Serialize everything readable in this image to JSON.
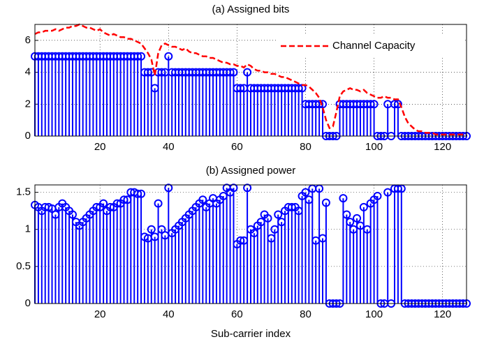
{
  "chart_data": [
    {
      "type": "stem",
      "title": "(a) Assigned bits",
      "color": "#0000ff",
      "x": [
        1,
        2,
        3,
        4,
        5,
        6,
        7,
        8,
        9,
        10,
        11,
        12,
        13,
        14,
        15,
        16,
        17,
        18,
        19,
        20,
        21,
        22,
        23,
        24,
        25,
        26,
        27,
        28,
        29,
        30,
        31,
        32,
        33,
        34,
        35,
        36,
        37,
        38,
        39,
        40,
        41,
        42,
        43,
        44,
        45,
        46,
        47,
        48,
        49,
        50,
        51,
        52,
        53,
        54,
        55,
        56,
        57,
        58,
        59,
        60,
        61,
        62,
        63,
        64,
        65,
        66,
        67,
        68,
        69,
        70,
        71,
        72,
        73,
        74,
        75,
        76,
        77,
        78,
        79,
        80,
        81,
        82,
        83,
        84,
        85,
        86,
        87,
        88,
        89,
        90,
        91,
        92,
        93,
        94,
        95,
        96,
        97,
        98,
        99,
        100,
        101,
        102,
        103,
        104,
        105,
        106,
        107,
        108,
        109,
        110,
        111,
        112,
        113,
        114,
        115,
        116,
        117,
        118,
        119,
        120,
        121,
        122,
        123,
        124,
        125,
        126,
        127
      ],
      "values": [
        5,
        5,
        5,
        5,
        5,
        5,
        5,
        5,
        5,
        5,
        5,
        5,
        5,
        5,
        5,
        5,
        5,
        5,
        5,
        5,
        5,
        5,
        5,
        5,
        5,
        5,
        5,
        5,
        5,
        5,
        5,
        5,
        4,
        4,
        4,
        3,
        4,
        4,
        4,
        5,
        4,
        4,
        4,
        4,
        4,
        4,
        4,
        4,
        4,
        4,
        4,
        4,
        4,
        4,
        4,
        4,
        4,
        4,
        4,
        3,
        3,
        3,
        4,
        3,
        3,
        3,
        3,
        3,
        3,
        3,
        3,
        3,
        3,
        3,
        3,
        3,
        3,
        3,
        3,
        2,
        2,
        2,
        2,
        2,
        2,
        0,
        0,
        0,
        0,
        2,
        2,
        2,
        2,
        2,
        2,
        2,
        2,
        2,
        2,
        2,
        0,
        0,
        0,
        2,
        0,
        2,
        2,
        0,
        0,
        0,
        0,
        0,
        0,
        0,
        0,
        0,
        0,
        0,
        0,
        0,
        0,
        0,
        0,
        0,
        0,
        0,
        0
      ],
      "series": [
        {
          "name": "Channel Capacity",
          "color": "#ff0000",
          "style": "dashed",
          "values": [
            6.4,
            6.5,
            6.5,
            6.6,
            6.6,
            6.6,
            6.7,
            6.6,
            6.7,
            6.8,
            6.8,
            6.9,
            6.9,
            7.0,
            6.9,
            6.8,
            6.8,
            6.7,
            6.6,
            6.7,
            6.5,
            6.4,
            6.3,
            6.4,
            6.3,
            6.2,
            6.2,
            6.1,
            6.1,
            6.0,
            5.9,
            5.8,
            5.5,
            5.2,
            4.8,
            3.8,
            5.2,
            5.7,
            5.8,
            5.7,
            5.6,
            5.6,
            5.5,
            5.4,
            5.5,
            5.3,
            5.2,
            5.2,
            5.1,
            5.0,
            5.0,
            4.9,
            4.9,
            4.8,
            4.7,
            4.6,
            4.6,
            4.5,
            4.5,
            4.4,
            4.4,
            4.3,
            4.5,
            4.4,
            4.2,
            4.1,
            4.1,
            4.0,
            4.0,
            3.9,
            3.9,
            3.8,
            3.7,
            3.7,
            3.6,
            3.5,
            3.4,
            3.3,
            3.2,
            3.2,
            3.1,
            2.9,
            2.7,
            2.4,
            1.8,
            1.0,
            0.5,
            0.6,
            1.5,
            2.5,
            2.8,
            2.9,
            3.0,
            2.9,
            2.9,
            2.8,
            2.9,
            2.7,
            2.6,
            2.5,
            2.4,
            2.4,
            2.5,
            2.4,
            2.4,
            2.3,
            2.3,
            1.8,
            1.2,
            0.8,
            0.6,
            0.4,
            0.3,
            0.3,
            0.2,
            0.2,
            0.2,
            0.1,
            0.1,
            0.1,
            0.1,
            0.1,
            0.1,
            0.1,
            0.1,
            0.1,
            0.1
          ]
        }
      ],
      "legend": "upper right",
      "grid": true,
      "xlim": [
        1,
        127
      ],
      "xticks": [
        20,
        40,
        60,
        80,
        100,
        120
      ],
      "ylim": [
        0,
        7
      ],
      "yticks": [
        0,
        2,
        4,
        6
      ]
    },
    {
      "type": "stem",
      "title": "(b) Assigned power",
      "color": "#0000ff",
      "xlabel": "Sub-carrier index",
      "x": [
        1,
        2,
        3,
        4,
        5,
        6,
        7,
        8,
        9,
        10,
        11,
        12,
        13,
        14,
        15,
        16,
        17,
        18,
        19,
        20,
        21,
        22,
        23,
        24,
        25,
        26,
        27,
        28,
        29,
        30,
        31,
        32,
        33,
        34,
        35,
        36,
        37,
        38,
        39,
        40,
        41,
        42,
        43,
        44,
        45,
        46,
        47,
        48,
        49,
        50,
        51,
        52,
        53,
        54,
        55,
        56,
        57,
        58,
        59,
        60,
        61,
        62,
        63,
        64,
        65,
        66,
        67,
        68,
        69,
        70,
        71,
        72,
        73,
        74,
        75,
        76,
        77,
        78,
        79,
        80,
        81,
        82,
        83,
        84,
        85,
        86,
        87,
        88,
        89,
        90,
        91,
        92,
        93,
        94,
        95,
        96,
        97,
        98,
        99,
        100,
        101,
        102,
        103,
        104,
        105,
        106,
        107,
        108,
        109,
        110,
        111,
        112,
        113,
        114,
        115,
        116,
        117,
        118,
        119,
        120,
        121,
        122,
        123,
        124,
        125,
        126,
        127
      ],
      "values": [
        1.33,
        1.3,
        1.25,
        1.3,
        1.3,
        1.28,
        1.2,
        1.3,
        1.35,
        1.3,
        1.25,
        1.2,
        1.1,
        1.05,
        1.1,
        1.15,
        1.2,
        1.25,
        1.3,
        1.3,
        1.35,
        1.25,
        1.3,
        1.3,
        1.35,
        1.35,
        1.4,
        1.4,
        1.5,
        1.5,
        1.48,
        1.48,
        0.9,
        0.88,
        1.0,
        0.9,
        1.35,
        1.0,
        0.92,
        1.56,
        0.95,
        1.0,
        1.05,
        1.1,
        1.15,
        1.2,
        1.25,
        1.3,
        1.35,
        1.4,
        1.3,
        1.35,
        1.42,
        1.35,
        1.4,
        1.45,
        1.56,
        1.5,
        1.56,
        0.8,
        0.85,
        0.85,
        1.56,
        1.0,
        0.95,
        1.05,
        1.1,
        1.2,
        1.15,
        0.88,
        1.0,
        1.2,
        1.1,
        1.25,
        1.3,
        1.3,
        1.3,
        1.25,
        1.45,
        1.5,
        1.4,
        1.55,
        0.85,
        1.55,
        0.88,
        1.36,
        0,
        0,
        0,
        0,
        1.42,
        1.2,
        1.1,
        1.0,
        1.15,
        1.05,
        1.3,
        1.0,
        1.35,
        1.4,
        1.45,
        0,
        0,
        1.5,
        0,
        1.55,
        1.55,
        1.55,
        0,
        0,
        0,
        0,
        0,
        0,
        0,
        0,
        0,
        0,
        0,
        0,
        0,
        0,
        0,
        0,
        0,
        0,
        0
      ],
      "grid": true,
      "xlim": [
        1,
        127
      ],
      "xticks": [
        20,
        40,
        60,
        80,
        100,
        120
      ],
      "ylim": [
        0,
        1.6
      ],
      "yticks": [
        0,
        0.5,
        1,
        1.5
      ]
    }
  ]
}
